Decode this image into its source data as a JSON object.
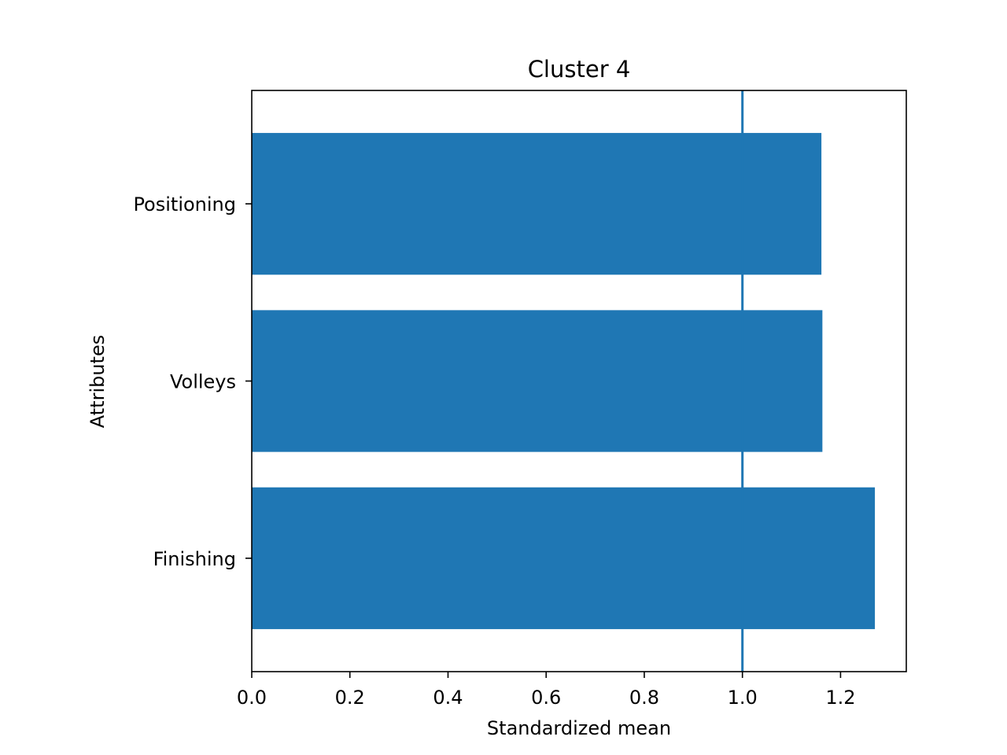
{
  "chart_data": {
    "type": "bar",
    "orientation": "horizontal",
    "title": "Cluster 4",
    "xlabel": "Standardized mean",
    "ylabel": "Attributes",
    "categories": [
      "Finishing",
      "Volleys",
      "Positioning"
    ],
    "values": [
      1.27,
      1.163,
      1.161
    ],
    "xlim": [
      0,
      1.334
    ],
    "xticks": [
      "0.0",
      "0.2",
      "0.4",
      "0.6",
      "0.8",
      "1.0",
      "1.2"
    ],
    "reference_line": {
      "x": 1.0,
      "color": "#1f77b4"
    },
    "bar_color": "#1f77b4",
    "grid": false,
    "legend": "none"
  }
}
